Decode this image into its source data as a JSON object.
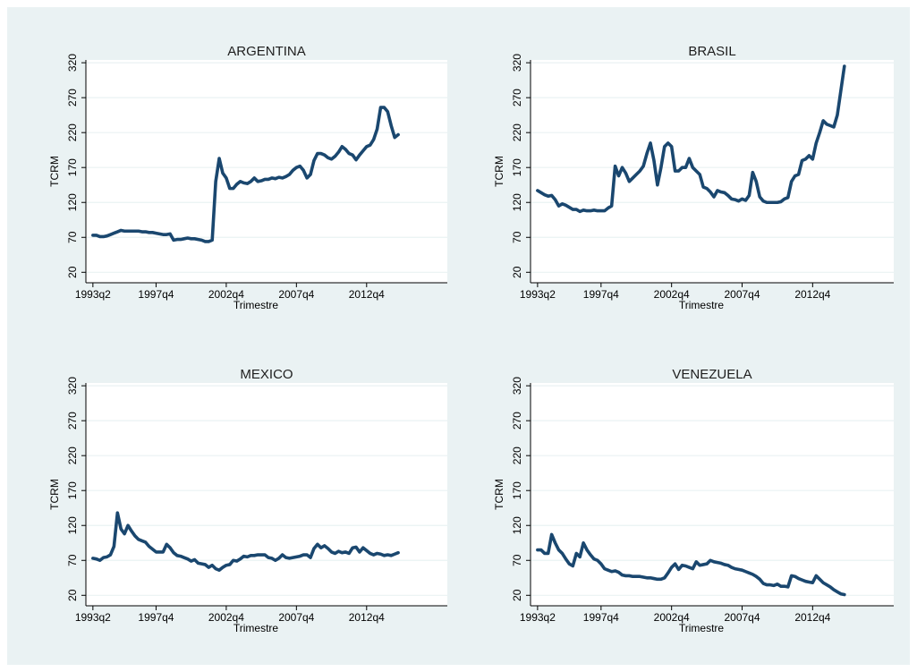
{
  "chart_data": [
    {
      "type": "line",
      "title": "ARGENTINA",
      "x_label": "Trimestre",
      "y_label": "TCRM",
      "color": "#1a476f",
      "grid": true,
      "x": [
        "1993q2",
        "1993q3",
        "1993q4",
        "1994q1",
        "1994q2",
        "1994q3",
        "1994q4",
        "1995q1",
        "1995q2",
        "1995q3",
        "1995q4",
        "1996q1",
        "1996q2",
        "1996q3",
        "1996q4",
        "1997q1",
        "1997q2",
        "1997q3",
        "1997q4",
        "1998q1",
        "1998q2",
        "1998q3",
        "1998q4",
        "1999q1",
        "1999q2",
        "1999q3",
        "1999q4",
        "2000q1",
        "2000q2",
        "2000q3",
        "2000q4",
        "2001q1",
        "2001q2",
        "2001q3",
        "2001q4",
        "2002q1",
        "2002q2",
        "2002q3",
        "2002q4",
        "2003q1",
        "2003q2",
        "2003q3",
        "2003q4",
        "2004q1",
        "2004q2",
        "2004q3",
        "2004q4",
        "2005q1",
        "2005q2",
        "2005q3",
        "2005q4",
        "2006q1",
        "2006q2",
        "2006q3",
        "2006q4",
        "2007q1",
        "2007q2",
        "2007q3",
        "2007q4",
        "2008q1",
        "2008q2",
        "2008q3",
        "2008q4",
        "2009q1",
        "2009q2",
        "2009q3",
        "2009q4",
        "2010q1",
        "2010q2",
        "2010q3",
        "2010q4",
        "2011q1",
        "2011q2",
        "2011q3",
        "2011q4",
        "2012q1",
        "2012q2",
        "2012q3",
        "2012q4",
        "2013q1",
        "2013q2",
        "2013q3",
        "2013q4",
        "2014q1",
        "2014q2",
        "2014q3",
        "2014q4",
        "2015q1"
      ],
      "values": [
        73,
        73,
        71,
        71,
        72,
        74,
        76,
        78,
        80,
        79,
        79,
        79,
        79,
        79,
        78,
        78,
        77,
        77,
        76,
        75,
        74,
        74,
        75,
        66,
        67,
        67,
        68,
        69,
        68,
        68,
        67,
        66,
        64,
        64,
        66,
        150,
        183,
        162,
        155,
        140,
        140,
        146,
        150,
        148,
        147,
        150,
        155,
        150,
        151,
        153,
        153,
        155,
        154,
        156,
        155,
        157,
        160,
        166,
        170,
        172,
        166,
        155,
        160,
        180,
        190,
        190,
        188,
        184,
        182,
        186,
        192,
        200,
        196,
        190,
        188,
        181,
        188,
        194,
        200,
        202,
        210,
        225,
        256,
        256,
        250,
        230,
        213,
        217
      ],
      "xlim": [
        "1992q4",
        "2018q3"
      ],
      "xticks": [
        "1993q2",
        "1997q4",
        "2002q4",
        "2007q4",
        "2012q4"
      ],
      "ylim": [
        5,
        324
      ],
      "yticks": [
        20,
        70,
        120,
        170,
        220,
        270,
        320
      ]
    },
    {
      "type": "line",
      "title": "BRASIL",
      "x_label": "Trimestre",
      "y_label": "TCRM",
      "color": "#1a476f",
      "grid": true,
      "x": [
        "1993q2",
        "1993q3",
        "1993q4",
        "1994q1",
        "1994q2",
        "1994q3",
        "1994q4",
        "1995q1",
        "1995q2",
        "1995q3",
        "1995q4",
        "1996q1",
        "1996q2",
        "1996q3",
        "1996q4",
        "1997q1",
        "1997q2",
        "1997q3",
        "1997q4",
        "1998q1",
        "1998q2",
        "1998q3",
        "1998q4",
        "1999q1",
        "1999q2",
        "1999q3",
        "1999q4",
        "2000q1",
        "2000q2",
        "2000q3",
        "2000q4",
        "2001q1",
        "2001q2",
        "2001q3",
        "2001q4",
        "2002q1",
        "2002q2",
        "2002q3",
        "2002q4",
        "2003q1",
        "2003q2",
        "2003q3",
        "2003q4",
        "2004q1",
        "2004q2",
        "2004q3",
        "2004q4",
        "2005q1",
        "2005q2",
        "2005q3",
        "2005q4",
        "2006q1",
        "2006q2",
        "2006q3",
        "2006q4",
        "2007q1",
        "2007q2",
        "2007q3",
        "2007q4",
        "2008q1",
        "2008q2",
        "2008q3",
        "2008q4",
        "2009q1",
        "2009q2",
        "2009q3",
        "2009q4",
        "2010q1",
        "2010q2",
        "2010q3",
        "2010q4",
        "2011q1",
        "2011q2",
        "2011q3",
        "2011q4",
        "2012q1",
        "2012q2",
        "2012q3",
        "2012q4",
        "2013q1",
        "2013q2",
        "2013q3",
        "2013q4",
        "2014q1",
        "2014q2",
        "2014q3",
        "2014q4",
        "2015q1"
      ],
      "values": [
        137,
        134,
        131,
        129,
        130,
        124,
        115,
        118,
        116,
        113,
        110,
        110,
        107,
        109,
        108,
        108,
        109,
        108,
        108,
        108,
        112,
        115,
        172,
        158,
        170,
        162,
        150,
        155,
        160,
        165,
        172,
        190,
        205,
        180,
        145,
        170,
        200,
        205,
        200,
        165,
        165,
        170,
        170,
        183,
        170,
        165,
        160,
        142,
        140,
        135,
        128,
        137,
        135,
        134,
        130,
        125,
        124,
        122,
        125,
        123,
        130,
        163,
        150,
        128,
        122,
        120,
        120,
        120,
        120,
        121,
        125,
        127,
        150,
        158,
        160,
        180,
        182,
        187,
        182,
        205,
        220,
        237,
        232,
        230,
        228,
        245,
        280,
        315
      ],
      "xlim": [
        "1992q4",
        "2018q3"
      ],
      "xticks": [
        "1993q2",
        "1997q4",
        "2002q4",
        "2007q4",
        "2012q4"
      ],
      "ylim": [
        5,
        324
      ],
      "yticks": [
        20,
        70,
        120,
        170,
        220,
        270,
        320
      ]
    },
    {
      "type": "line",
      "title": "MEXICO",
      "x_label": "Trimestre",
      "y_label": "TCRM",
      "color": "#1a476f",
      "grid": true,
      "x": [
        "1993q2",
        "1993q3",
        "1993q4",
        "1994q1",
        "1994q2",
        "1994q3",
        "1994q4",
        "1995q1",
        "1995q2",
        "1995q3",
        "1995q4",
        "1996q1",
        "1996q2",
        "1996q3",
        "1996q4",
        "1997q1",
        "1997q2",
        "1997q3",
        "1997q4",
        "1998q1",
        "1998q2",
        "1998q3",
        "1998q4",
        "1999q1",
        "1999q2",
        "1999q3",
        "1999q4",
        "2000q1",
        "2000q2",
        "2000q3",
        "2000q4",
        "2001q1",
        "2001q2",
        "2001q3",
        "2001q4",
        "2002q1",
        "2002q2",
        "2002q3",
        "2002q4",
        "2003q1",
        "2003q2",
        "2003q3",
        "2003q4",
        "2004q1",
        "2004q2",
        "2004q3",
        "2004q4",
        "2005q1",
        "2005q2",
        "2005q3",
        "2005q4",
        "2006q1",
        "2006q2",
        "2006q3",
        "2006q4",
        "2007q1",
        "2007q2",
        "2007q3",
        "2007q4",
        "2008q1",
        "2008q2",
        "2008q3",
        "2008q4",
        "2009q1",
        "2009q2",
        "2009q3",
        "2009q4",
        "2010q1",
        "2010q2",
        "2010q3",
        "2010q4",
        "2011q1",
        "2011q2",
        "2011q3",
        "2011q4",
        "2012q1",
        "2012q2",
        "2012q3",
        "2012q4",
        "2013q1",
        "2013q2",
        "2013q3",
        "2013q4",
        "2014q1",
        "2014q2",
        "2014q3",
        "2014q4",
        "2015q1"
      ],
      "values": [
        73,
        72,
        70,
        74,
        75,
        78,
        90,
        138,
        115,
        108,
        120,
        112,
        105,
        100,
        98,
        96,
        90,
        86,
        82,
        82,
        82,
        93,
        88,
        81,
        77,
        76,
        74,
        72,
        69,
        71,
        66,
        65,
        64,
        60,
        63,
        58,
        56,
        60,
        63,
        64,
        70,
        69,
        72,
        76,
        75,
        77,
        77,
        78,
        78,
        78,
        74,
        73,
        70,
        73,
        78,
        74,
        73,
        74,
        75,
        76,
        78,
        78,
        74,
        87,
        93,
        88,
        91,
        87,
        82,
        80,
        83,
        81,
        82,
        80,
        88,
        89,
        82,
        88,
        84,
        80,
        78,
        80,
        79,
        77,
        78,
        77,
        79,
        81
      ],
      "xlim": [
        "1992q4",
        "2018q3"
      ],
      "xticks": [
        "1993q2",
        "1997q4",
        "2002q4",
        "2007q4",
        "2012q4"
      ],
      "ylim": [
        5,
        324
      ],
      "yticks": [
        20,
        70,
        120,
        170,
        220,
        270,
        320
      ]
    },
    {
      "type": "line",
      "title": "VENEZUELA",
      "x_label": "Trimestre",
      "y_label": "TCRM",
      "color": "#1a476f",
      "grid": true,
      "x": [
        "1993q2",
        "1993q3",
        "1993q4",
        "1994q1",
        "1994q2",
        "1994q3",
        "1994q4",
        "1995q1",
        "1995q2",
        "1995q3",
        "1995q4",
        "1996q1",
        "1996q2",
        "1996q3",
        "1996q4",
        "1997q1",
        "1997q2",
        "1997q3",
        "1997q4",
        "1998q1",
        "1998q2",
        "1998q3",
        "1998q4",
        "1999q1",
        "1999q2",
        "1999q3",
        "1999q4",
        "2000q1",
        "2000q2",
        "2000q3",
        "2000q4",
        "2001q1",
        "2001q2",
        "2001q3",
        "2001q4",
        "2002q1",
        "2002q2",
        "2002q3",
        "2002q4",
        "2003q1",
        "2003q2",
        "2003q3",
        "2003q4",
        "2004q1",
        "2004q2",
        "2004q3",
        "2004q4",
        "2005q1",
        "2005q2",
        "2005q3",
        "2005q4",
        "2006q1",
        "2006q2",
        "2006q3",
        "2006q4",
        "2007q1",
        "2007q2",
        "2007q3",
        "2007q4",
        "2008q1",
        "2008q2",
        "2008q3",
        "2008q4",
        "2009q1",
        "2009q2",
        "2009q3",
        "2009q4",
        "2010q1",
        "2010q2",
        "2010q3",
        "2010q4",
        "2011q1",
        "2011q2",
        "2011q3",
        "2011q4",
        "2012q1",
        "2012q2",
        "2012q3",
        "2012q4",
        "2013q1",
        "2013q2",
        "2013q3",
        "2013q4",
        "2014q1",
        "2014q2",
        "2014q3",
        "2014q4",
        "2015q1"
      ],
      "values": [
        85,
        85,
        80,
        80,
        107,
        95,
        85,
        80,
        72,
        65,
        62,
        80,
        75,
        95,
        85,
        78,
        72,
        70,
        65,
        58,
        56,
        54,
        55,
        53,
        49,
        48,
        48,
        47,
        47,
        47,
        46,
        45,
        45,
        44,
        43,
        43,
        45,
        52,
        60,
        65,
        57,
        63,
        62,
        60,
        58,
        68,
        63,
        64,
        65,
        70,
        68,
        67,
        66,
        64,
        63,
        60,
        58,
        57,
        56,
        54,
        52,
        50,
        47,
        43,
        37,
        35,
        35,
        34,
        36,
        33,
        33,
        32,
        48,
        47,
        44,
        42,
        40,
        39,
        38,
        48,
        43,
        38,
        35,
        32,
        28,
        25,
        22,
        21
      ],
      "xlim": [
        "1992q4",
        "2018q3"
      ],
      "xticks": [
        "1993q2",
        "1997q4",
        "2002q4",
        "2007q4",
        "2012q4"
      ],
      "ylim": [
        5,
        324
      ],
      "yticks": [
        20,
        70,
        120,
        170,
        220,
        270,
        320
      ]
    }
  ]
}
